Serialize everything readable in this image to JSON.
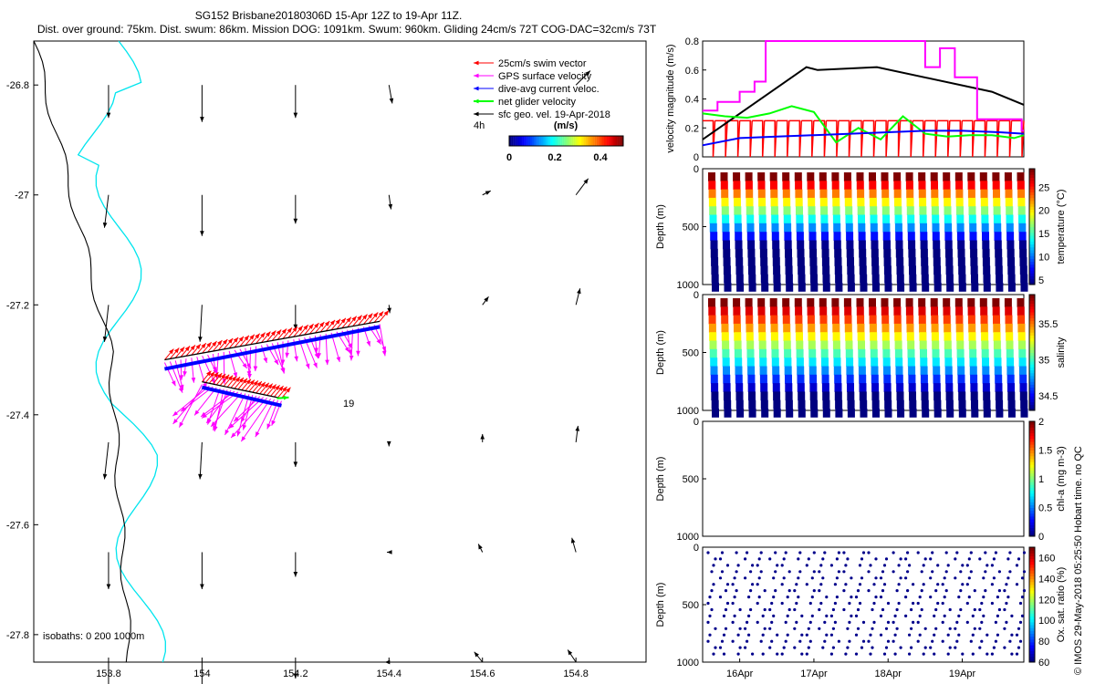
{
  "titles": {
    "line1": "SG152 Brisbane20180306D 15-Apr 12Z to 19-Apr 11Z.",
    "line2": "Dist. over ground: 75km. Dist. swum: 86km. Mission DOG: 1091km. Swum: 960km. Gliding 24cm/s 72T COG-DAC=32cm/s 73T"
  },
  "credit": "© IMOS 29-May-2018 05:25:50 Hobart time. no QC",
  "colors": {
    "swim": "#ff0000",
    "gps": "#ff00ff",
    "dac": "#0000ff",
    "net": "#00ff00",
    "geo": "#000000",
    "iso200": "#00e5ee",
    "iso1000": "#000000"
  },
  "chart_data": [
    {
      "type": "scatter",
      "name": "map",
      "xlabel": "",
      "ylabel": "",
      "xlim": [
        153.64,
        154.95
      ],
      "ylim": [
        -27.85,
        -26.72
      ],
      "xticks": [
        "153.8",
        "154",
        "154.2",
        "154.4",
        "154.6",
        "154.8"
      ],
      "xtick_values": [
        153.8,
        154.0,
        154.2,
        154.4,
        154.6,
        154.8
      ],
      "yticks": [
        "-26.8",
        "-27",
        "-27.2",
        "-27.4",
        "-27.6",
        "-27.8"
      ],
      "ytick_values": [
        -26.8,
        -27.0,
        -27.2,
        -27.4,
        -27.6,
        -27.8
      ],
      "legend": {
        "placement": "top-right",
        "entries": [
          "25cm/s swim vector",
          "GPS surface velocity",
          "dive-avg current veloc.",
          "net glider velocity",
          "sfc geo. vel. 19-Apr-2018"
        ]
      },
      "time_label": "4h",
      "colorbar": {
        "label": "(m/s)",
        "ticks": [
          "0",
          "0.2",
          "0.4"
        ],
        "range": [
          0,
          0.5
        ]
      },
      "annotation": "19",
      "isobath_label": "isobaths: 0   200  1000m",
      "track": {
        "start": [
          154.38,
          -27.23
        ],
        "segment1_end": [
          153.92,
          -27.3
        ],
        "segment2_start": [
          154.0,
          -27.34
        ],
        "segment2_end": [
          154.17,
          -27.37
        ]
      },
      "geo_vectors": [
        {
          "lon": 153.8,
          "lat": -26.8,
          "u": 0.0,
          "v": -0.8
        },
        {
          "lon": 154.0,
          "lat": -26.8,
          "u": 0.0,
          "v": -0.9
        },
        {
          "lon": 154.2,
          "lat": -26.8,
          "u": 0.0,
          "v": -0.8
        },
        {
          "lon": 154.4,
          "lat": -26.8,
          "u": 0.08,
          "v": -0.45
        },
        {
          "lon": 154.6,
          "lat": -26.8,
          "u": 0.0,
          "v": 0.0
        },
        {
          "lon": 154.8,
          "lat": -26.8,
          "u": 0.35,
          "v": 0.35
        },
        {
          "lon": 153.8,
          "lat": -27.0,
          "u": -0.1,
          "v": -0.8
        },
        {
          "lon": 154.0,
          "lat": -27.0,
          "u": 0.0,
          "v": -1.0
        },
        {
          "lon": 154.2,
          "lat": -27.0,
          "u": 0.0,
          "v": -0.7
        },
        {
          "lon": 154.4,
          "lat": -27.0,
          "u": 0.05,
          "v": -0.35
        },
        {
          "lon": 154.6,
          "lat": -27.0,
          "u": 0.2,
          "v": 0.1
        },
        {
          "lon": 154.8,
          "lat": -27.0,
          "u": 0.3,
          "v": 0.4
        },
        {
          "lon": 153.8,
          "lat": -27.2,
          "u": -0.1,
          "v": -0.9
        },
        {
          "lon": 154.0,
          "lat": -27.2,
          "u": -0.05,
          "v": -0.9
        },
        {
          "lon": 154.2,
          "lat": -27.2,
          "u": 0.0,
          "v": -0.6
        },
        {
          "lon": 154.4,
          "lat": -27.2,
          "u": 0.02,
          "v": -0.2
        },
        {
          "lon": 154.6,
          "lat": -27.2,
          "u": 0.15,
          "v": 0.2
        },
        {
          "lon": 154.8,
          "lat": -27.2,
          "u": 0.1,
          "v": 0.4
        },
        {
          "lon": 153.8,
          "lat": -27.45,
          "u": -0.1,
          "v": -0.9
        },
        {
          "lon": 154.0,
          "lat": -27.45,
          "u": -0.05,
          "v": -0.9
        },
        {
          "lon": 154.2,
          "lat": -27.45,
          "u": 0.0,
          "v": -0.6
        },
        {
          "lon": 154.4,
          "lat": -27.45,
          "u": 0.0,
          "v": -0.1
        },
        {
          "lon": 154.6,
          "lat": -27.45,
          "u": 0.0,
          "v": 0.2
        },
        {
          "lon": 154.8,
          "lat": -27.45,
          "u": 0.05,
          "v": 0.4
        },
        {
          "lon": 153.8,
          "lat": -27.65,
          "u": 0.0,
          "v": -0.9
        },
        {
          "lon": 154.0,
          "lat": -27.65,
          "u": 0.0,
          "v": -0.9
        },
        {
          "lon": 154.2,
          "lat": -27.65,
          "u": 0.0,
          "v": -0.6
        },
        {
          "lon": 154.4,
          "lat": -27.65,
          "u": -0.05,
          "v": 0.0
        },
        {
          "lon": 154.6,
          "lat": -27.65,
          "u": -0.1,
          "v": 0.2
        },
        {
          "lon": 154.8,
          "lat": -27.65,
          "u": -0.1,
          "v": 0.35
        },
        {
          "lon": 153.8,
          "lat": -27.85,
          "u": 0.0,
          "v": -0.7
        },
        {
          "lon": 154.0,
          "lat": -27.85,
          "u": 0.0,
          "v": -0.7
        },
        {
          "lon": 154.2,
          "lat": -27.85,
          "u": 0.0,
          "v": -0.4
        },
        {
          "lon": 154.4,
          "lat": -27.85,
          "u": -0.1,
          "v": 0.0
        },
        {
          "lon": 154.6,
          "lat": -27.85,
          "u": -0.2,
          "v": 0.25
        },
        {
          "lon": 154.8,
          "lat": -27.85,
          "u": -0.2,
          "v": 0.3
        }
      ]
    },
    {
      "type": "line",
      "name": "velocity",
      "ylabel": "velocity magnitude (m/s)",
      "ylim": [
        0,
        0.8
      ],
      "yticks": [
        "0",
        "0.2",
        "0.4",
        "0.6",
        "0.8"
      ],
      "xlim": [
        0,
        4.33
      ],
      "series": [
        {
          "color": "#000000",
          "x": [
            0,
            1.4,
            1.55,
            2.35,
            3.9,
            4.33
          ],
          "y": [
            0.12,
            0.62,
            0.6,
            0.62,
            0.45,
            0.36
          ]
        },
        {
          "color": "#ff00ff",
          "x": [
            0,
            0.2,
            0.2,
            0.5,
            0.5,
            0.7,
            0.7,
            0.85,
            0.85,
            1.0,
            1.0,
            3.0,
            3.0,
            3.2,
            3.2,
            3.4,
            3.4,
            3.7,
            3.7,
            4.3,
            4.3,
            4.33
          ],
          "y": [
            0.32,
            0.32,
            0.38,
            0.38,
            0.45,
            0.45,
            0.52,
            0.52,
            0.8,
            0.8,
            0.8,
            0.8,
            0.62,
            0.62,
            0.75,
            0.75,
            0.55,
            0.55,
            0.26,
            0.26,
            0.18,
            0.18
          ]
        },
        {
          "color": "#00ff00",
          "x": [
            0,
            0.3,
            0.6,
            0.9,
            1.2,
            1.5,
            1.8,
            2.1,
            2.4,
            2.7,
            3.0,
            3.3,
            3.6,
            3.9,
            4.2,
            4.33
          ],
          "y": [
            0.3,
            0.28,
            0.27,
            0.3,
            0.35,
            0.31,
            0.1,
            0.2,
            0.12,
            0.28,
            0.16,
            0.14,
            0.15,
            0.15,
            0.13,
            0.15
          ]
        },
        {
          "color": "#0000ff",
          "x": [
            0,
            0.5,
            1.0,
            1.5,
            2.0,
            2.5,
            3.0,
            3.5,
            4.0,
            4.33
          ],
          "y": [
            0.08,
            0.13,
            0.14,
            0.15,
            0.16,
            0.17,
            0.18,
            0.18,
            0.17,
            0.16
          ]
        }
      ],
      "swim_sawtooth": {
        "color": "#ff0000",
        "cycles": 26,
        "high": 0.25,
        "low": 0.0
      }
    },
    {
      "type": "heatmap",
      "name": "temperature",
      "ylabel": "Depth (m)",
      "ylim": [
        1000,
        0
      ],
      "yticks": [
        "0",
        "500",
        "1000"
      ],
      "colorbar_label": "temperature (°C)",
      "colorbar_ticks": [
        "5",
        "10",
        "15",
        "20",
        "25"
      ],
      "range": [
        4,
        29
      ],
      "dives": 26
    },
    {
      "type": "heatmap",
      "name": "salinity",
      "ylabel": "Depth (m)",
      "ylim": [
        1000,
        0
      ],
      "yticks": [
        "0",
        "500",
        "1000"
      ],
      "colorbar_label": "salinity",
      "colorbar_ticks": [
        "34.5",
        "35",
        "35.5"
      ],
      "range": [
        34.3,
        35.9
      ],
      "dives": 26
    },
    {
      "type": "heatmap",
      "name": "chl",
      "ylabel": "Depth (m)",
      "ylim": [
        1000,
        0
      ],
      "yticks": [
        "0",
        "500",
        "1000"
      ],
      "colorbar_label": "chl-a (mg m-3)",
      "colorbar_ticks": [
        "0",
        "0.5",
        "1",
        "1.5",
        "2"
      ],
      "range": [
        0,
        2
      ],
      "dives": 0
    },
    {
      "type": "heatmap",
      "name": "oxygen",
      "ylabel": "Depth (m)",
      "ylim": [
        1000,
        0
      ],
      "yticks": [
        "0",
        "500",
        "1000"
      ],
      "colorbar_label": "Ox. sat. ratio (%)",
      "colorbar_ticks": [
        "60",
        "80",
        "100",
        "120",
        "140",
        "160"
      ],
      "range": [
        60,
        170
      ],
      "dives": 26,
      "xticks": [
        "16Apr",
        "17Apr",
        "18Apr",
        "19Apr"
      ],
      "xtick_values": [
        0.5,
        1.5,
        2.5,
        3.5
      ]
    }
  ]
}
